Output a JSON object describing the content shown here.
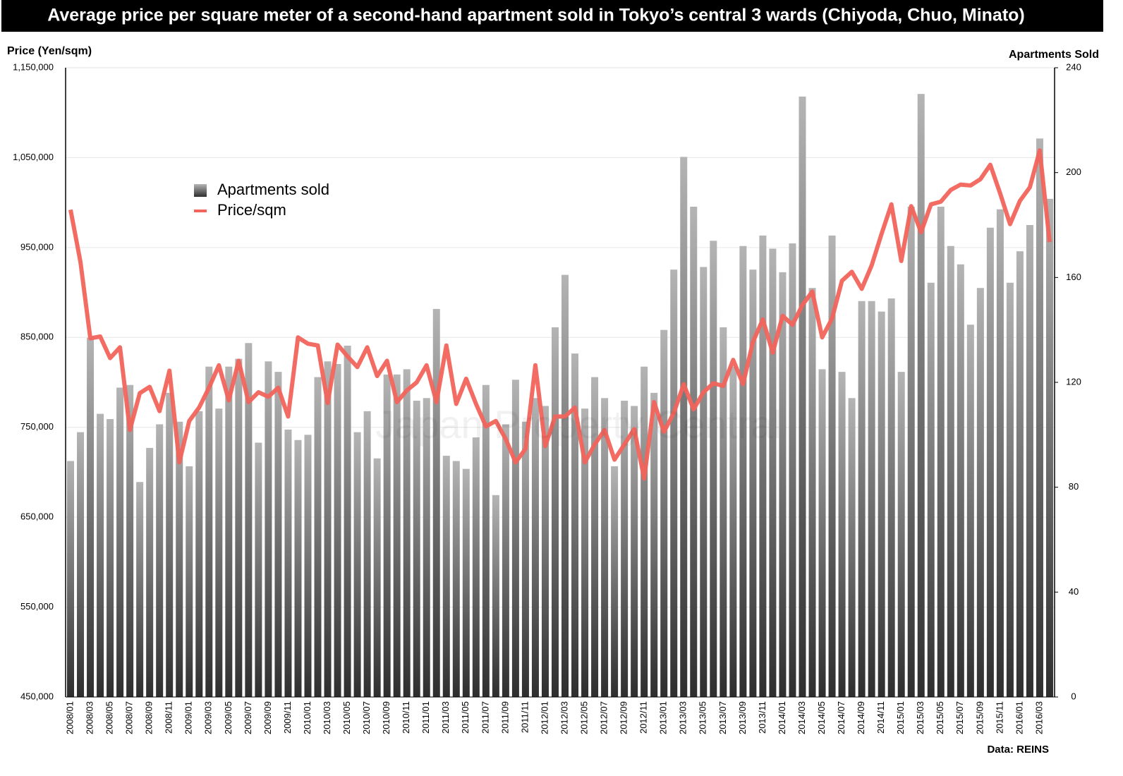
{
  "chart_data": {
    "type": "bar",
    "title": "Average price per square meter of a second-hand apartment sold in Tokyo’s central 3 wards (Chiyoda, Chuo, Minato)",
    "y_label": "Price (Yen/sqm)",
    "y2_label": "Apartments Sold",
    "source": "Data: REINS",
    "watermark": "Japan Property Central",
    "legend": "upper left",
    "grid": true,
    "categories": [
      "2008/01",
      null,
      "2008/03",
      null,
      "2008/05",
      null,
      "2008/07",
      null,
      "2008/09",
      null,
      "2008/11",
      null,
      "2009/01",
      null,
      "2009/03",
      null,
      "2009/05",
      null,
      "2009/07",
      null,
      "2009/09",
      null,
      "2009/11",
      null,
      "2010/01",
      null,
      "2010/03",
      null,
      "2010/05",
      null,
      "2010/07",
      null,
      "2010/09",
      null,
      "2010/11",
      null,
      "2011/01",
      null,
      "2011/03",
      null,
      "2011/05",
      null,
      "2011/07",
      null,
      "2011/09",
      null,
      "2011/11",
      null,
      "2012/01",
      null,
      "2012/03",
      null,
      "2012/05",
      null,
      "2012/07",
      null,
      "2012/09",
      null,
      "2012/11",
      null,
      "2013/01",
      null,
      "2013/03",
      null,
      "2013/05",
      null,
      "2013/07",
      null,
      "2013/09",
      null,
      "2013/11",
      null,
      "2014/01",
      null,
      "2014/03",
      null,
      "2014/05",
      null,
      "2014/07",
      null,
      "2014/09",
      null,
      "2014/11",
      null,
      "2015/01",
      null,
      "2015/03",
      null,
      "2015/05",
      null,
      "2015/07",
      null,
      "2015/09",
      null,
      "2015/11",
      null,
      "2016/01",
      null,
      "2016/03",
      null
    ],
    "series": [
      {
        "name": "Apartments sold",
        "type": "bar",
        "axis": "y2",
        "color": "#808080",
        "values": [
          90,
          101,
          137,
          108,
          106,
          118,
          119,
          82,
          95,
          104,
          116,
          105,
          88,
          109,
          126,
          110,
          126,
          129,
          135,
          97,
          128,
          124,
          102,
          98,
          100,
          122,
          128,
          127,
          134,
          101,
          109,
          91,
          123,
          123,
          125,
          113,
          114,
          148,
          92,
          90,
          87,
          99,
          119,
          77,
          104,
          121,
          105,
          114,
          111,
          141,
          161,
          131,
          110,
          122,
          114,
          88,
          113,
          111,
          126,
          116,
          140,
          163,
          206,
          187,
          164,
          174,
          141,
          126,
          172,
          163,
          176,
          171,
          162,
          173,
          229,
          156,
          125,
          176,
          124,
          114,
          151,
          151,
          147,
          152,
          124,
          187,
          230,
          158,
          187,
          172,
          165,
          142,
          156,
          179,
          186,
          158,
          170,
          180,
          213,
          190
        ]
      },
      {
        "name": "Price/sqm",
        "type": "line",
        "color": "#f2645c",
        "values": [
          992000,
          934000,
          849000,
          851000,
          827000,
          839000,
          747000,
          788000,
          795000,
          768000,
          813000,
          711000,
          757000,
          772000,
          794000,
          819000,
          780000,
          824000,
          778000,
          789000,
          784000,
          794000,
          762000,
          850000,
          843000,
          841000,
          777000,
          842000,
          829000,
          817000,
          839000,
          807000,
          824000,
          778000,
          791000,
          800000,
          819000,
          778000,
          841000,
          776000,
          804000,
          776000,
          751000,
          757000,
          737000,
          711000,
          726000,
          819000,
          729000,
          762000,
          762000,
          772000,
          711000,
          731000,
          747000,
          714000,
          731000,
          748000,
          693000,
          778000,
          745000,
          766000,
          798000,
          770000,
          789000,
          799000,
          796000,
          825000,
          798000,
          845000,
          870000,
          833000,
          874000,
          864000,
          886000,
          901000,
          850000,
          871000,
          913000,
          923000,
          904000,
          930000,
          965000,
          998000,
          935000,
          996000,
          967000,
          998000,
          1001000,
          1014000,
          1020000,
          1019000,
          1026000,
          1042000,
          1010000,
          976000,
          1002000,
          1017000,
          1058000,
          956000
        ]
      }
    ],
    "ylim": [
      450000,
      1150000
    ],
    "yticks": [
      {
        "value": 450000,
        "label": "450,000"
      },
      {
        "value": 550000,
        "label": "550,000"
      },
      {
        "value": 650000,
        "label": "650,000"
      },
      {
        "value": 750000,
        "label": "750,000"
      },
      {
        "value": 850000,
        "label": "850,000"
      },
      {
        "value": 950000,
        "label": "950,000"
      },
      {
        "value": 1050000,
        "label": "1,050,000"
      },
      {
        "value": 1150000,
        "label": "1,150,000"
      }
    ],
    "y2lim": [
      0,
      240
    ],
    "y2ticks": [
      0,
      40,
      80,
      120,
      160,
      200,
      240
    ]
  }
}
